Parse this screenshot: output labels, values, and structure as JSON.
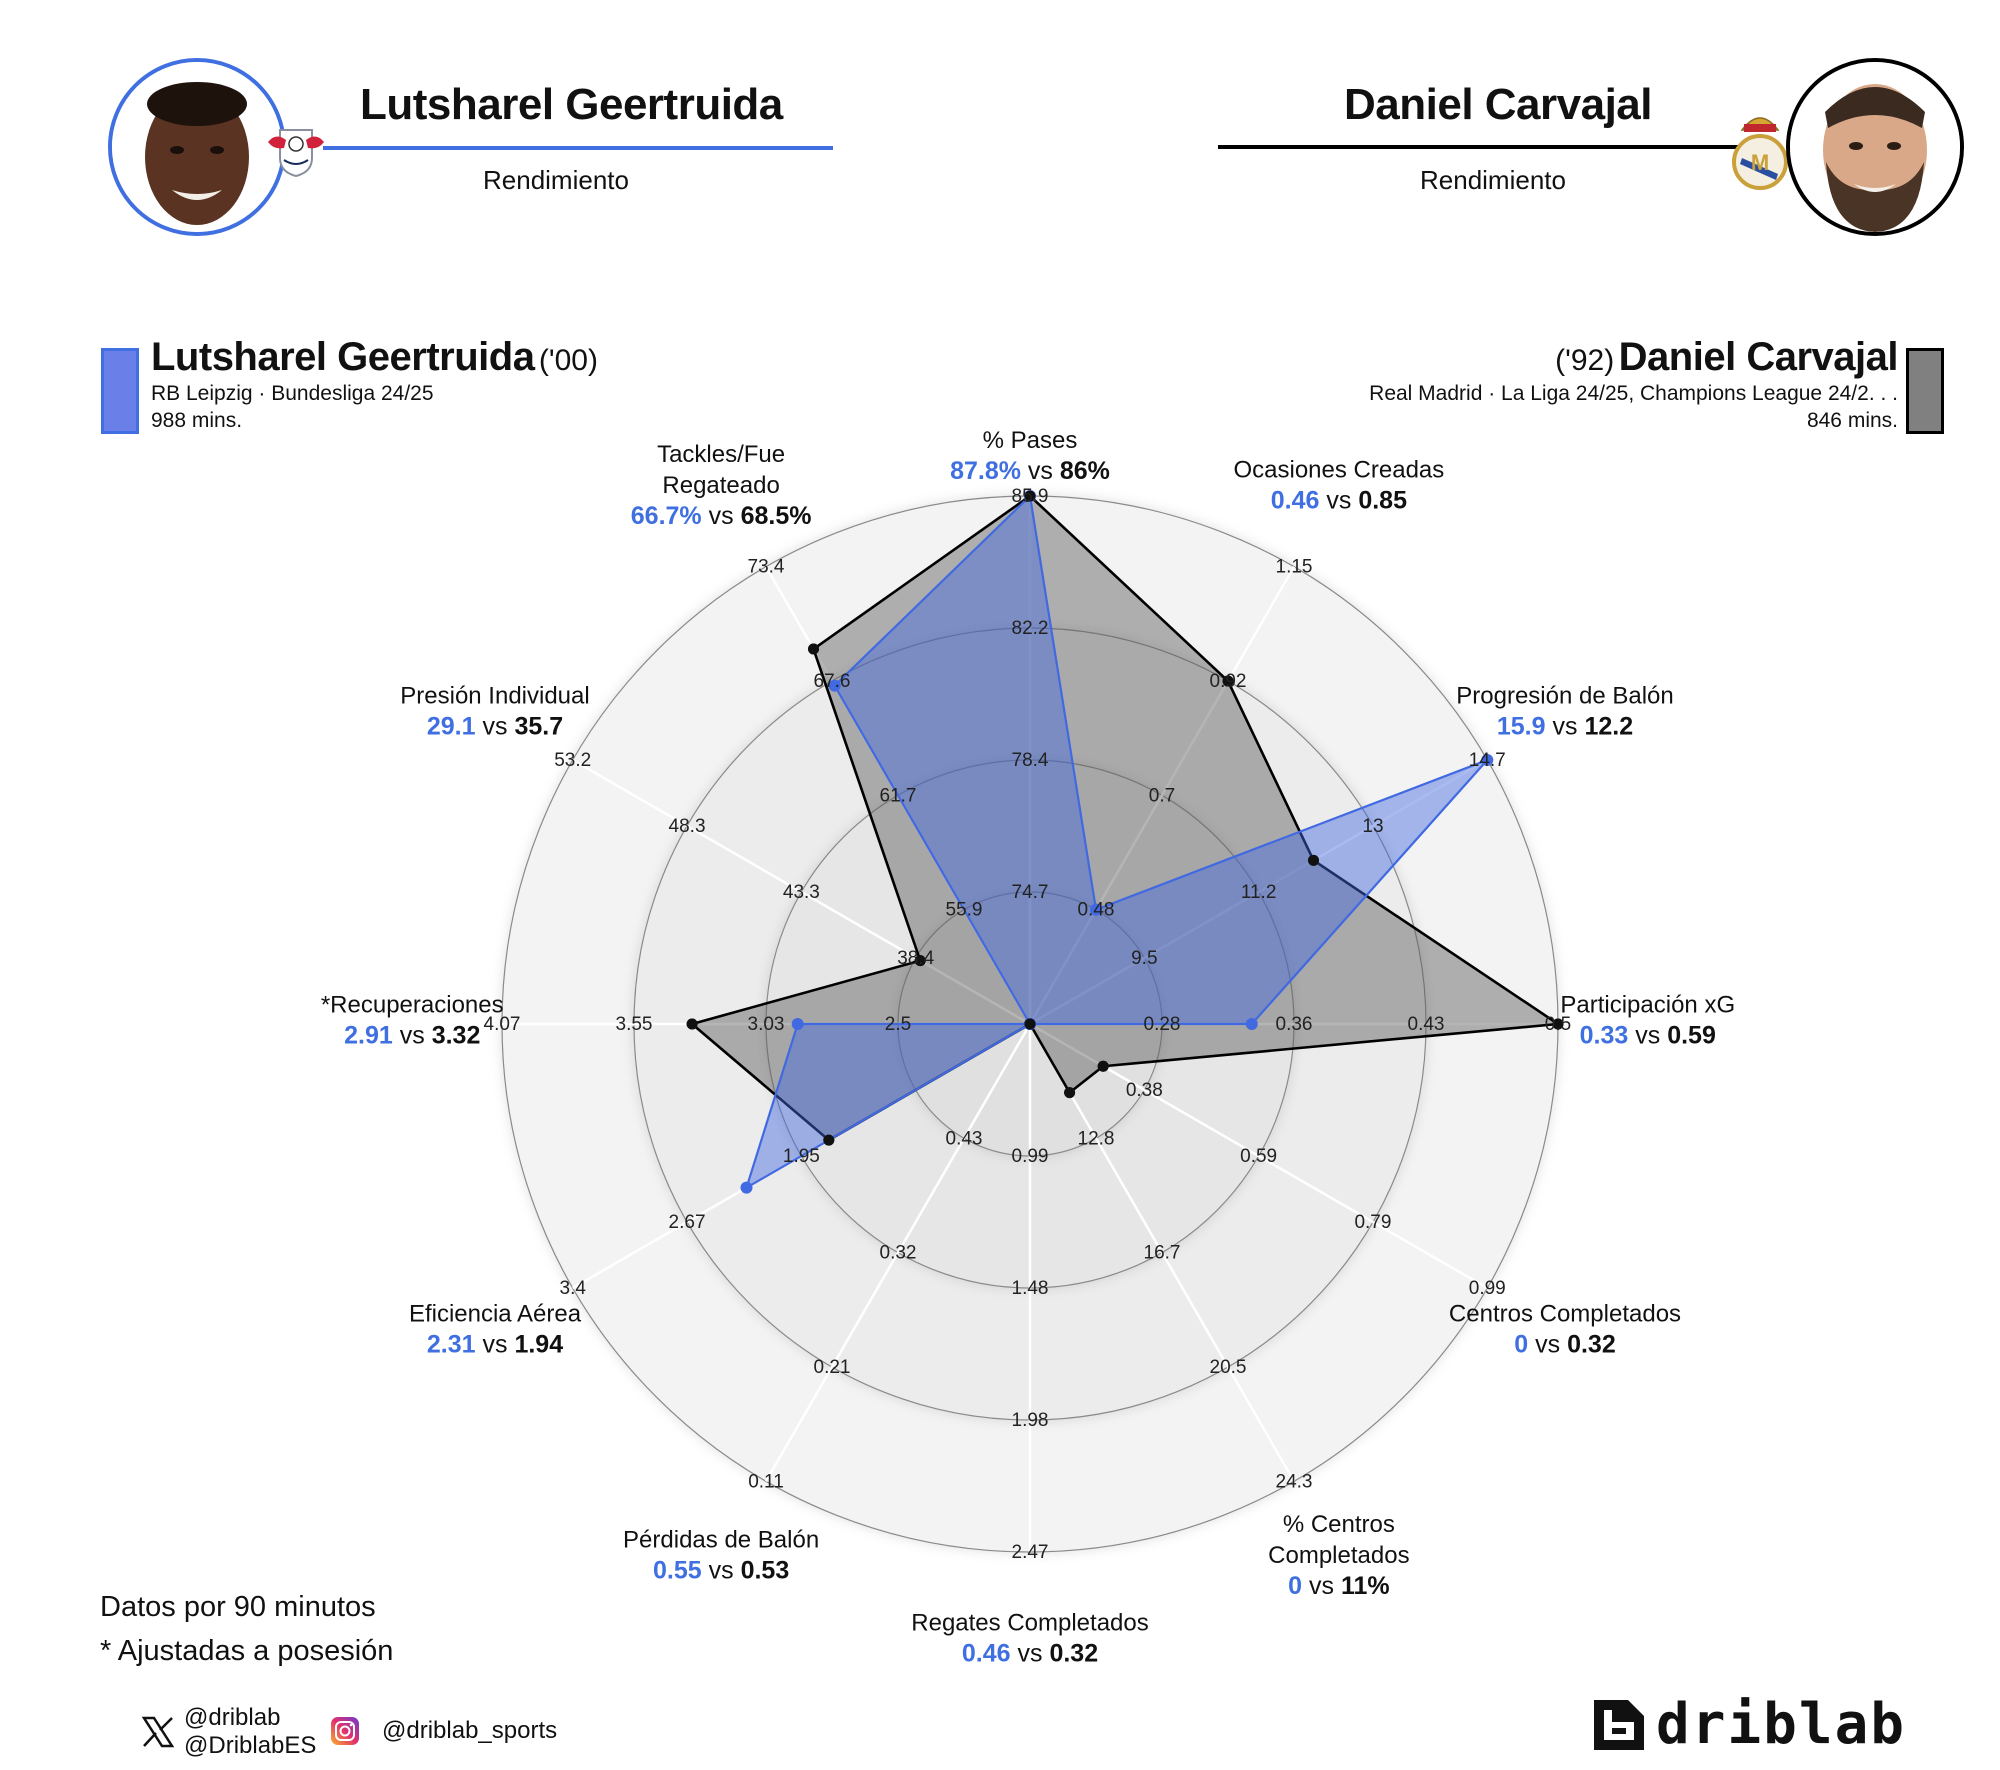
{
  "header": {
    "left": {
      "player_name": "Lutsharel Geertruida",
      "subtitle": "Rendimiento",
      "club_badge": "rb-leipzig-badge",
      "accent_color": "#3f6fe0"
    },
    "right": {
      "player_name": "Daniel Carvajal",
      "subtitle": "Rendimiento",
      "club_badge": "real-madrid-badge",
      "accent_color": "#000000"
    }
  },
  "legend": {
    "player1": {
      "name": "Lutsharel Geertruida",
      "age": "('00)",
      "team_comp": "RB Leipzig · Bundesliga 24/25",
      "minutes": "988 mins.",
      "color": "#6b7fe8"
    },
    "player2": {
      "name": "Daniel Carvajal",
      "age": "('92)",
      "team_comp": "Real Madrid · La Liga 24/25, Champions League 24/2. . .",
      "minutes": "846 mins.",
      "color": "#808080"
    }
  },
  "footer": {
    "note1": "Datos por 90 minutos",
    "note2": "* Ajustadas a posesión",
    "x_handle_1": "@driblab",
    "x_handle_2": "@DriblabES",
    "instagram_handle": "@driblab_sports",
    "brand": "driblab"
  },
  "chart_data": {
    "type": "radar",
    "title": "Lutsharel Geertruida vs Daniel Carvajal — Rendimiento",
    "units_note": "Datos por 90 minutos; * Ajustadas a posesión",
    "axes": [
      {
        "label": "% Pases",
        "p1_text": "87.8%",
        "p2_text": "86%",
        "p1": 87.8,
        "p2": 86,
        "ticks": [
          "74.7",
          "78.4",
          "82.2",
          "85.9"
        ],
        "min": 71.0,
        "max": 85.9
      },
      {
        "label": "Ocasiones Creadas",
        "p1_text": "0.46",
        "p2_text": "0.85",
        "p1": 0.46,
        "p2": 0.85,
        "ticks": [
          "0.48",
          "0.7",
          "0.92",
          "1.15"
        ],
        "min": 0.26,
        "max": 1.15
      },
      {
        "label": "Progresión de Balón",
        "p1_text": "15.9",
        "p2_text": "12.2",
        "p1": 15.9,
        "p2": 12.2,
        "ticks": [
          "9.5",
          "11.2",
          "13",
          "14.7"
        ],
        "min": 7.8,
        "max": 14.7
      },
      {
        "label": "Participación xG",
        "p1_text": "0.33",
        "p2_text": "0.59",
        "p1": 0.33,
        "p2": 0.59,
        "ticks": [
          "0.28",
          "0.36",
          "0.43",
          "0.5"
        ],
        "min": 0.21,
        "max": 0.5
      },
      {
        "label": "Centros Completados",
        "p1_text": "0",
        "p2_text": "0.32",
        "p1": 0,
        "p2": 0.32,
        "ticks": [
          "0.38",
          "0.59",
          "0.79",
          "0.99"
        ],
        "min": 0.18,
        "max": 0.99
      },
      {
        "label": "% Centros Completados",
        "p1_text": "0",
        "p2_text": "11%",
        "p1": 0,
        "p2": 11,
        "ticks": [
          "12.8",
          "16.7",
          "20.5",
          "24.3"
        ],
        "min": 9.0,
        "max": 24.3
      },
      {
        "label": "Regates Completados",
        "p1_text": "0.46",
        "p2_text": "0.32",
        "p1": 0.46,
        "p2": 0.32,
        "ticks": [
          "0.99",
          "1.48",
          "1.98",
          "2.47"
        ],
        "min": 0.5,
        "max": 2.47
      },
      {
        "label": "Pérdidas de Balón",
        "p1_text": "0.55",
        "p2_text": "0.53",
        "p1": 0.55,
        "p2": 0.53,
        "ticks": [
          "0.43",
          "0.32",
          "0.21",
          "0.11"
        ],
        "min": 0.54,
        "max": 0.11,
        "inverted": true
      },
      {
        "label": "Eficiencia Aérea",
        "p1_text": "2.31",
        "p2_text": "1.94",
        "p1": 2.31,
        "p2": 1.94,
        "ticks": [
          "1.95",
          "2.67",
          "3.4"
        ],
        "min": 0.5,
        "max": 4.13
      },
      {
        "label": "*Recuperaciones",
        "p1_text": "2.91",
        "p2_text": "3.32",
        "p1": 2.91,
        "p2": 3.32,
        "ticks": [
          "2.5",
          "3.03",
          "3.55",
          "4.07"
        ],
        "min": 1.98,
        "max": 4.07
      },
      {
        "label": "Presión Individual",
        "p1_text": "29.1",
        "p2_text": "35.7",
        "p1": 29.1,
        "p2": 35.7,
        "ticks": [
          "38.4",
          "43.3",
          "48.3",
          "53.2"
        ],
        "min": 33.5,
        "max": 53.2
      },
      {
        "label": "Tackles/Fue Regateado",
        "p1_text": "66.7%",
        "p2_text": "68.5%",
        "p1": 66.7,
        "p2": 68.5,
        "ticks": [
          "55.9",
          "61.7",
          "67.6",
          "73.4"
        ],
        "min": 50.1,
        "max": 73.4
      }
    ],
    "series": [
      {
        "name": "Lutsharel Geertruida",
        "color": "#4169e1",
        "fill": "rgba(65,105,225,0.45)",
        "radii": [
          1.0,
          0.25,
          1.0,
          0.42,
          0.0,
          0.0,
          0.0,
          0.0,
          0.62,
          0.44,
          0.0,
          0.74
        ]
      },
      {
        "name": "Daniel Carvajal",
        "color": "#000000",
        "fill": "rgba(90,90,90,0.45)",
        "radii": [
          1.0,
          0.75,
          0.62,
          1.0,
          0.16,
          0.15,
          0.0,
          0.0,
          0.44,
          0.64,
          0.24,
          0.82
        ]
      }
    ],
    "rings": 4,
    "grid": true,
    "legend_position": "top"
  }
}
